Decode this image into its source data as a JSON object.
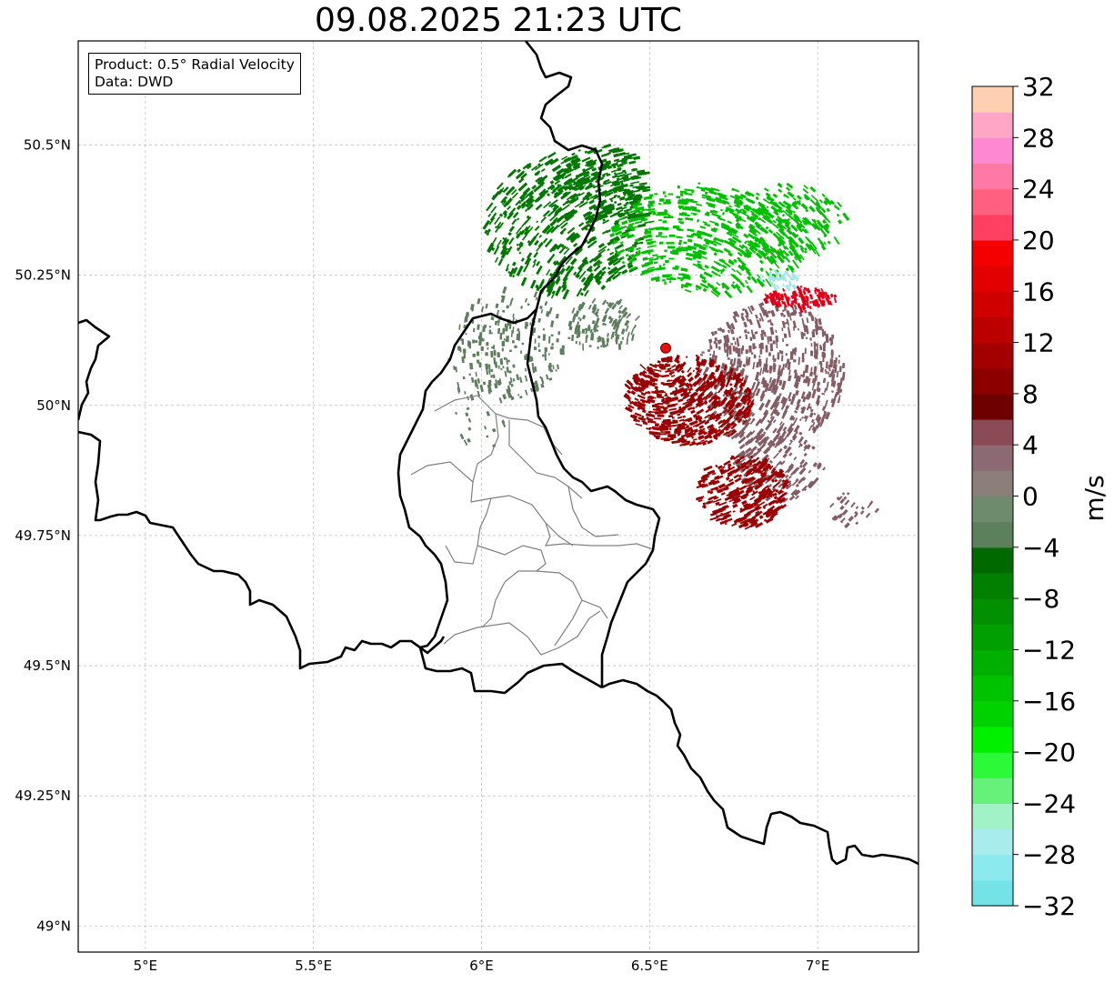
{
  "title": "09.08.2025 21:23 UTC",
  "info_box": {
    "product": "Product: 0.5° Radial Velocity",
    "data": "Data: DWD"
  },
  "radar_site": {
    "lon": 6.548,
    "lat": 50.11,
    "color": "#e41010"
  },
  "chart_data": {
    "type": "map",
    "projection": "PlateCarree",
    "xlim_lon": [
      4.8,
      7.3
    ],
    "ylim_lat": [
      48.95,
      50.7
    ],
    "grid": true,
    "x_ticks": [
      {
        "value": 5.0,
        "label": "5°E"
      },
      {
        "value": 5.5,
        "label": "5.5°E"
      },
      {
        "value": 6.0,
        "label": "6°E"
      },
      {
        "value": 6.5,
        "label": "6.5°E"
      },
      {
        "value": 7.0,
        "label": "7°E"
      }
    ],
    "y_ticks": [
      {
        "value": 49.0,
        "label": "49°N"
      },
      {
        "value": 49.25,
        "label": "49.25°N"
      },
      {
        "value": 49.5,
        "label": "49.5°N"
      },
      {
        "value": 49.75,
        "label": "49.75°N"
      },
      {
        "value": 50.0,
        "label": "50°N"
      },
      {
        "value": 50.25,
        "label": "50.25°N"
      },
      {
        "value": 50.5,
        "label": "50.5°N"
      }
    ],
    "colorbar": {
      "unit": "m/s",
      "min": -32,
      "max": 32,
      "ticks": [
        -32,
        -28,
        -24,
        -20,
        -16,
        -12,
        -8,
        -4,
        0,
        4,
        8,
        12,
        16,
        20,
        24,
        28,
        32
      ],
      "tick_labels": [
        "−32",
        "−28",
        "−24",
        "−20",
        "−16",
        "−12",
        "−8",
        "−4",
        "0",
        "4",
        "8",
        "12",
        "16",
        "20",
        "24",
        "28",
        "32"
      ],
      "colors": [
        "#74e3e8",
        "#8ce9ee",
        "#a9eced",
        "#a1f2c6",
        "#66f27a",
        "#2cfa39",
        "#00f000",
        "#00d200",
        "#00c300",
        "#00b000",
        "#00a000",
        "#009000",
        "#007f00",
        "#006a00",
        "#5c7f5c",
        "#6e8b6e",
        "#8c7f7a",
        "#8c6a74",
        "#8a4b56",
        "#6e0000",
        "#8c0000",
        "#a50000",
        "#bc0000",
        "#d00000",
        "#e20000",
        "#f50000",
        "#ff4062",
        "#ff607f",
        "#ff78a6",
        "#ff88d2",
        "#ffa6c6",
        "#ffcfb1"
      ]
    },
    "velocity_echo_groups": [
      {
        "name": "inbound strong",
        "value_range": [
          -12,
          -8
        ],
        "color": "#007800"
      },
      {
        "name": "inbound moderate",
        "value_range": [
          -16,
          -12
        ],
        "color": "#00c000"
      },
      {
        "name": "inbound light",
        "value_range": [
          -4,
          0
        ],
        "color": "#5e7e5e"
      },
      {
        "name": "outbound light",
        "value_range": [
          0,
          4
        ],
        "color": "#845c66"
      },
      {
        "name": "outbound moderate",
        "value_range": [
          8,
          12
        ],
        "color": "#9a0000"
      },
      {
        "name": "outbound strong",
        "value_range": [
          16,
          20
        ],
        "color": "#e00018"
      },
      {
        "name": "aliased",
        "value_range": [
          -28,
          -24
        ],
        "color": "#a0e8ea"
      }
    ]
  }
}
